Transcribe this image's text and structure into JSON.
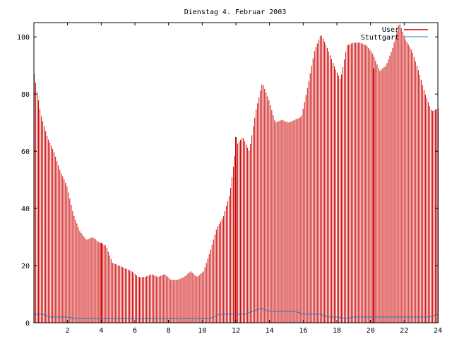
{
  "chart_data": {
    "type": "bar",
    "title": "Dienstag 4. Februar 2003",
    "xlabel": "",
    "ylabel": "",
    "xlim": [
      0,
      24
    ],
    "ylim": [
      0,
      105
    ],
    "x_ticks": [
      2,
      4,
      6,
      8,
      10,
      12,
      14,
      16,
      18,
      20,
      22,
      24
    ],
    "y_ticks": [
      0,
      20,
      40,
      60,
      80,
      100
    ],
    "grid": false,
    "legend_position": "top-right",
    "colors": {
      "primary": "#cc0000",
      "secondary": "#1a7fc0"
    },
    "hourly_x": [
      0,
      0.5,
      1,
      1.5,
      2,
      2.5,
      3,
      3.5,
      4,
      4.5,
      5,
      5.5,
      6,
      6.5,
      7,
      7.5,
      8,
      8.5,
      9,
      9.5,
      10,
      10.5,
      11,
      11.5,
      12,
      12.5,
      13,
      13.5,
      14,
      14.5,
      15,
      15.5,
      16,
      16.5,
      17,
      17.5,
      18,
      18.5,
      19,
      19.5,
      20,
      20.5,
      21,
      21.5,
      22,
      22.5,
      23,
      23.5,
      24
    ],
    "series": [
      {
        "name": "User",
        "style": "impulses",
        "values": [
          87,
          73,
          65,
          60,
          53,
          48,
          38,
          32,
          29,
          30,
          28,
          27,
          21,
          20,
          19,
          18,
          16,
          16,
          17,
          16,
          17,
          15,
          15,
          16,
          18,
          16,
          18,
          25,
          33,
          37,
          45,
          62,
          65,
          60,
          74,
          84,
          78,
          70,
          71,
          70,
          71,
          72,
          83,
          95,
          101,
          96,
          90,
          85,
          97,
          98,
          98,
          97,
          94,
          88,
          90,
          96,
          105,
          99,
          95,
          88,
          80,
          74,
          75
        ]
      },
      {
        "name": "Stuttgart",
        "style": "line",
        "values": [
          3,
          3,
          2,
          2,
          2,
          1.5,
          1.5,
          1.5,
          1.5,
          1.5,
          1.5,
          1.5,
          1.5,
          1.5,
          1.5,
          1.5,
          1.5,
          1.5,
          1.5,
          1.5,
          1.5,
          1.5,
          3,
          3,
          3,
          3,
          4,
          5,
          4,
          4,
          4,
          4,
          3,
          3,
          3,
          2,
          2,
          1.5,
          2,
          2,
          2,
          2,
          2,
          2,
          2,
          2,
          2,
          2,
          3
        ]
      }
    ],
    "spikes": [
      {
        "x": 4,
        "value": 28
      },
      {
        "x": 12,
        "value": 65
      },
      {
        "x": 20.2,
        "value": 89
      }
    ]
  }
}
